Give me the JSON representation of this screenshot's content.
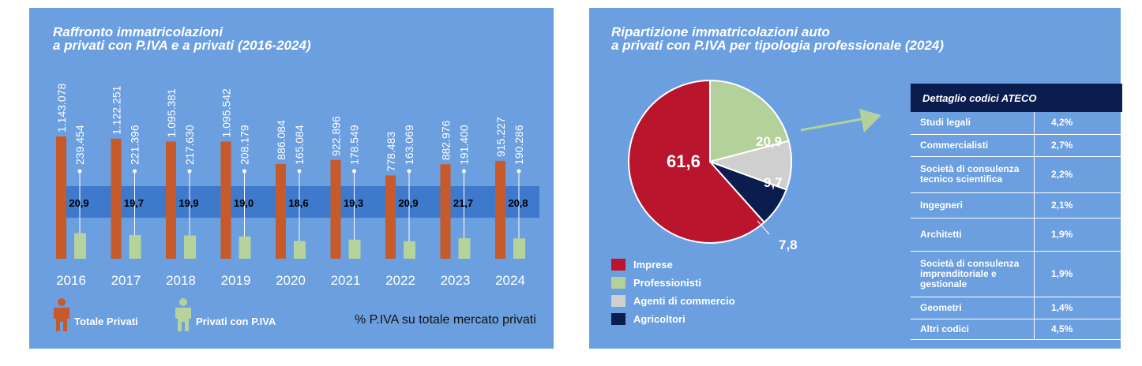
{
  "left": {
    "title_line1": "Raffronto immatricolazioni",
    "title_line2": "a privati con P.IVA e a privati (2016-2024)",
    "legend_totale": "Totale Privati",
    "legend_piva": "Privati con P.IVA",
    "note": "% P.IVA su totale mercato privati"
  },
  "right": {
    "title_line1": "Ripartizione immatricolazioni auto",
    "title_line2": "a privati con P.IVA per tipologia professionale (2024)",
    "table_header": "Dettaglio codici ATECO",
    "table_rows": [
      {
        "name": "Studi legali",
        "value": "4,2%"
      },
      {
        "name": "Commercialisti",
        "value": "2,7%"
      },
      {
        "name": "Società di consulenza tecnico scientifica",
        "value": "2,2%"
      },
      {
        "name": "Ingegneri",
        "value": "2,1%"
      },
      {
        "name": "Architetti",
        "value": "1,9%"
      },
      {
        "name": "Società di consulenza imprenditoriale e gestionale",
        "value": "1,9%"
      },
      {
        "name": "Geometri",
        "value": "1,4%"
      },
      {
        "name": "Altri codici",
        "value": "4,5%"
      }
    ]
  },
  "colors": {
    "background": "#6c9fe0",
    "totale": "#c65a2a",
    "piva": "#b5d39b",
    "band": "#3f79cc",
    "imprese": "#b9152d",
    "professionisti": "#b3d19a",
    "agenti": "#cfcfcf",
    "agricoltori": "#0b1d4e"
  },
  "chart_data": [
    {
      "type": "bar",
      "categories": [
        "2016",
        "2017",
        "2018",
        "2019",
        "2020",
        "2021",
        "2022",
        "2023",
        "2024"
      ],
      "series": [
        {
          "name": "Totale Privati",
          "values": [
            1143078,
            1122251,
            1095381,
            1095542,
            886084,
            922896,
            778483,
            882976,
            915227
          ],
          "labels": [
            "1.143.078",
            "1.122.251",
            "1.095.381",
            "1.095.542",
            "886.084",
            "922.896",
            "778.483",
            "882.976",
            "915.227"
          ]
        },
        {
          "name": "Privati con P.IVA",
          "values": [
            239454,
            221396,
            217630,
            208179,
            165084,
            178549,
            163069,
            191400,
            190286
          ],
          "labels": [
            "239.454",
            "221.396",
            "217.630",
            "208.179",
            "165.084",
            "178.549",
            "163.069",
            "191.400",
            "190.286"
          ]
        },
        {
          "name": "% P.IVA su totale mercato privati",
          "values": [
            20.9,
            19.7,
            19.9,
            19.0,
            18.6,
            19.3,
            20.9,
            21.7,
            20.8
          ],
          "labels": [
            "20,9",
            "19,7",
            "19,9",
            "19,0",
            "18,6",
            "19,3",
            "20,9",
            "21,7",
            "20,8"
          ]
        }
      ]
    },
    {
      "type": "pie",
      "slices": [
        {
          "name": "Imprese",
          "value": 61.6,
          "label": "61,6"
        },
        {
          "name": "Professionisti",
          "value": 20.9,
          "label": "20,9"
        },
        {
          "name": "Agenti di commercio",
          "value": 9.7,
          "label": "9,7"
        },
        {
          "name": "Agricoltori",
          "value": 7.8,
          "label": "7,8"
        }
      ]
    }
  ]
}
